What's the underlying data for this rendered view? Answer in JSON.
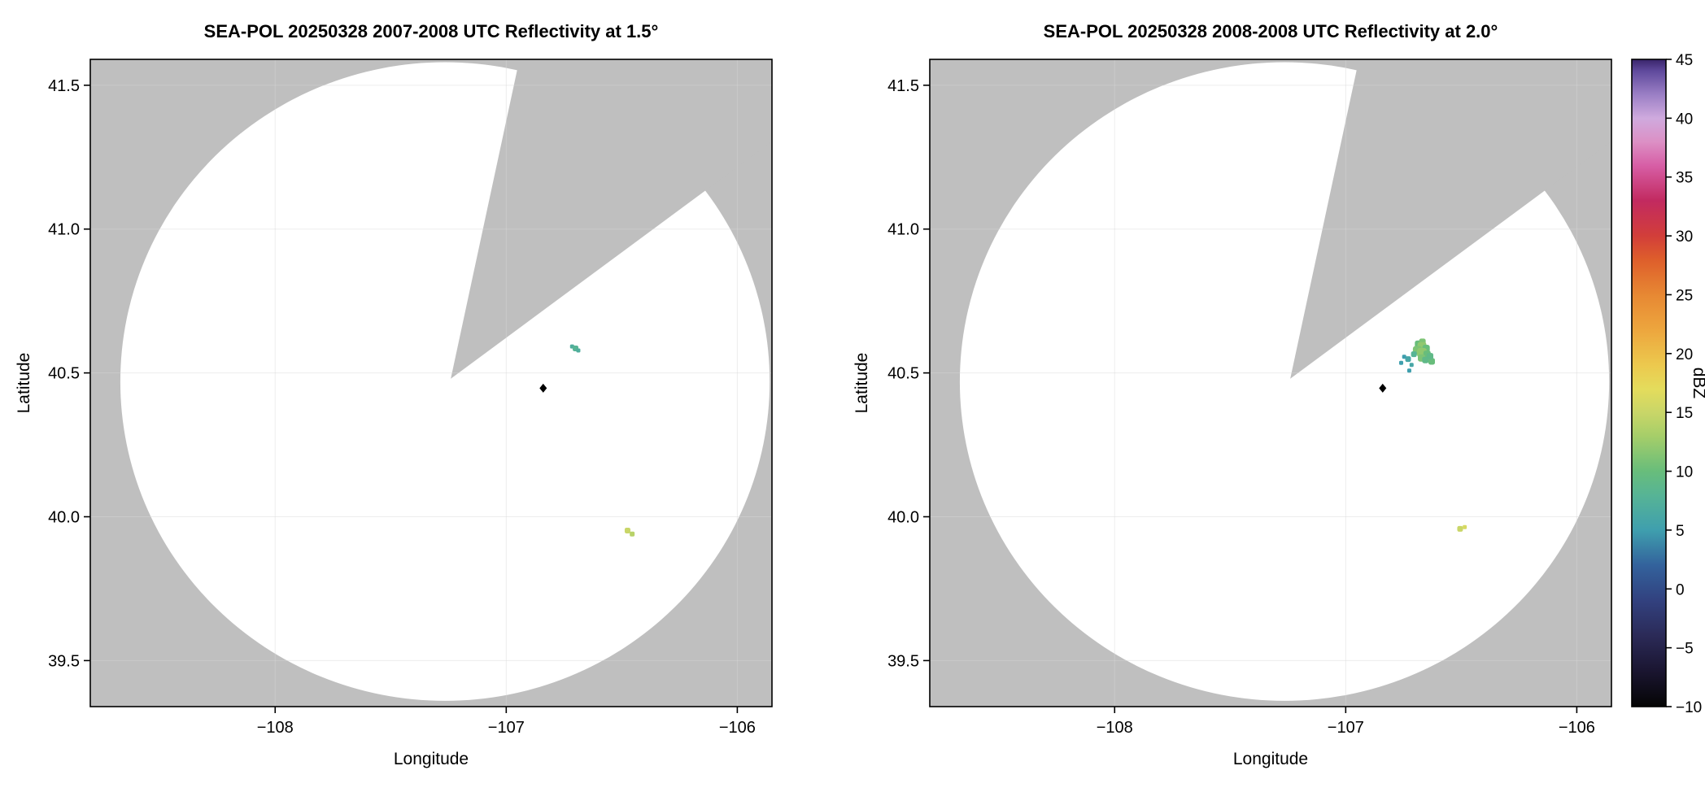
{
  "panel_colors": {
    "outside": "#bfbfbf",
    "coverage": "#ffffff",
    "frame": "#000000",
    "site_marker": "#000000",
    "grid": "#d8d8d8"
  },
  "colorbar": {
    "label": "dBZ",
    "min": -10,
    "max": 45,
    "ticks": {
      "values": [
        -10,
        -5,
        0,
        5,
        10,
        15,
        20,
        25,
        30,
        35,
        40,
        45
      ],
      "labels": [
        "−10",
        "−5",
        "0",
        "5",
        "10",
        "15",
        "20",
        "25",
        "30",
        "35",
        "40",
        "45"
      ]
    },
    "colormap": [
      [
        -10,
        "#050505"
      ],
      [
        -7,
        "#1a1530"
      ],
      [
        -4,
        "#2b2a57"
      ],
      [
        -1,
        "#32417f"
      ],
      [
        2,
        "#33629c"
      ],
      [
        5,
        "#3f9fae"
      ],
      [
        8,
        "#57b495"
      ],
      [
        10,
        "#68bd7b"
      ],
      [
        13,
        "#a6ce69"
      ],
      [
        15,
        "#c9d668"
      ],
      [
        17,
        "#e4dc5c"
      ],
      [
        19,
        "#ecc94e"
      ],
      [
        22,
        "#eda63e"
      ],
      [
        25,
        "#e78833"
      ],
      [
        28,
        "#de5e2b"
      ],
      [
        30,
        "#d23e3a"
      ],
      [
        33,
        "#c22a60"
      ],
      [
        36,
        "#d75fa6"
      ],
      [
        38,
        "#dc90c5"
      ],
      [
        40,
        "#cfaade"
      ],
      [
        42,
        "#9b7fc5"
      ],
      [
        44,
        "#604a9d"
      ],
      [
        45,
        "#3a256b"
      ]
    ]
  },
  "chart_data": [
    {
      "type": "scatter",
      "variant": "radar-ppi",
      "title": "SEA-POL 20250328 2007-2008 UTC Reflectivity at 1.5°",
      "xlabel": "Longitude",
      "ylabel": "Latitude",
      "xlim": [
        -108.8,
        -105.85
      ],
      "ylim": [
        39.34,
        41.59
      ],
      "xticks": {
        "values": [
          -108,
          -107,
          -106
        ],
        "labels": [
          "−108",
          "−107",
          "−106"
        ]
      },
      "yticks": {
        "values": [
          39.5,
          40.0,
          40.5,
          41.0,
          41.5
        ],
        "labels": [
          "39.5",
          "40.0",
          "40.5",
          "41.0",
          "41.5"
        ]
      },
      "coverage": {
        "center": [
          -107.265,
          40.47
        ],
        "rx": 1.405,
        "ry": 1.11,
        "blocked_sector": {
          "apex": [
            -107.24,
            40.48
          ],
          "edge1_dir": [
            0.294,
            1.098
          ],
          "edge2_dir": [
            1.065,
            0.632
          ]
        }
      },
      "site_marker": {
        "lon": -106.84,
        "lat": 40.447
      },
      "echoes": [
        [
          -106.715,
          40.592,
          7,
          5
        ],
        [
          -106.7,
          40.585,
          8,
          7
        ],
        [
          -106.688,
          40.578,
          7,
          5
        ],
        [
          -106.475,
          39.952,
          15,
          7
        ],
        [
          -106.455,
          39.94,
          14,
          6
        ]
      ]
    },
    {
      "type": "scatter",
      "variant": "radar-ppi",
      "title": "SEA-POL 20250328 2008-2008 UTC Reflectivity at 2.0°",
      "xlabel": "Longitude",
      "ylabel": "Latitude",
      "xlim": [
        -108.8,
        -105.85
      ],
      "ylim": [
        39.34,
        41.59
      ],
      "xticks": {
        "values": [
          -108,
          -107,
          -106
        ],
        "labels": [
          "−108",
          "−107",
          "−106"
        ]
      },
      "yticks": {
        "values": [
          39.5,
          40.0,
          40.5,
          41.0,
          41.5
        ],
        "labels": [
          "39.5",
          "40.0",
          "40.5",
          "41.0",
          "41.5"
        ]
      },
      "coverage": {
        "center": [
          -107.265,
          40.47
        ],
        "rx": 1.405,
        "ry": 1.11,
        "blocked_sector": {
          "apex": [
            -107.24,
            40.48
          ],
          "edge1_dir": [
            0.294,
            1.098
          ],
          "edge2_dir": [
            1.065,
            0.632
          ]
        }
      },
      "site_marker": {
        "lon": -106.84,
        "lat": 40.447
      },
      "echoes": [
        [
          -106.685,
          40.6,
          10,
          9
        ],
        [
          -106.668,
          40.608,
          11,
          8
        ],
        [
          -106.67,
          40.592,
          12,
          11
        ],
        [
          -106.652,
          40.585,
          10,
          9
        ],
        [
          -106.69,
          40.578,
          11,
          11
        ],
        [
          -106.67,
          40.57,
          12,
          12
        ],
        [
          -106.648,
          40.565,
          10,
          9
        ],
        [
          -106.672,
          40.552,
          11,
          9
        ],
        [
          -106.655,
          40.545,
          9,
          8
        ],
        [
          -106.628,
          40.54,
          10,
          8
        ],
        [
          -106.635,
          40.558,
          9,
          8
        ],
        [
          -106.705,
          40.565,
          8,
          7
        ],
        [
          -106.73,
          40.548,
          6,
          7
        ],
        [
          -106.747,
          40.556,
          5,
          5
        ],
        [
          -106.715,
          40.528,
          6,
          5
        ],
        [
          -106.76,
          40.535,
          5,
          5
        ],
        [
          -106.725,
          40.508,
          5,
          5
        ],
        [
          -106.505,
          39.958,
          15,
          7
        ],
        [
          -106.485,
          39.964,
          16,
          5
        ]
      ]
    }
  ]
}
